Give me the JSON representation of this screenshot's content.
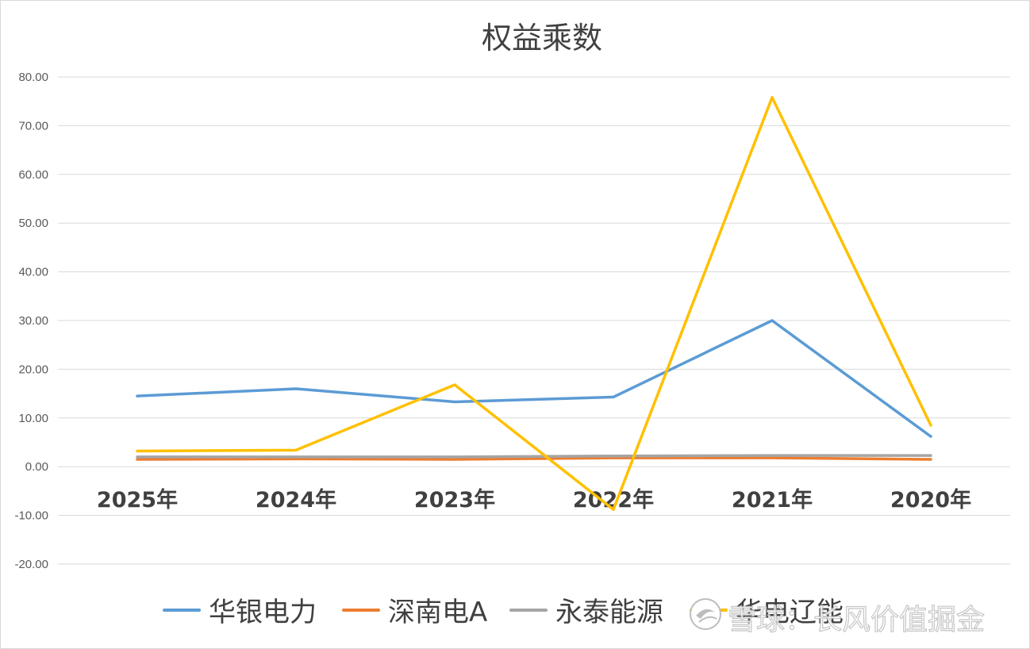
{
  "chart_data": {
    "type": "line",
    "title": "权益乘数",
    "xlabel": "",
    "ylabel": "",
    "categories": [
      "2025年",
      "2024年",
      "2023年",
      "2022年",
      "2021年",
      "2020年"
    ],
    "y_ticks": [
      "80.00",
      "70.00",
      "60.00",
      "50.00",
      "40.00",
      "30.00",
      "20.00",
      "10.00",
      "0.00",
      "-10.00",
      "-20.00"
    ],
    "ylim": [
      -20,
      80
    ],
    "grid": true,
    "legend_position": "bottom",
    "series": [
      {
        "name": "华银电力",
        "color": "#5b9bd5",
        "values": [
          14.5,
          16.0,
          13.3,
          14.3,
          30.0,
          6.2
        ]
      },
      {
        "name": "深南电A",
        "color": "#ed7d31",
        "values": [
          1.5,
          1.6,
          1.5,
          1.8,
          1.8,
          1.5
        ]
      },
      {
        "name": "永泰能源",
        "color": "#a5a5a5",
        "values": [
          2.0,
          2.0,
          2.0,
          2.2,
          2.3,
          2.3
        ]
      },
      {
        "name": "华电辽能",
        "color": "#ffc000",
        "values": [
          3.2,
          3.4,
          16.8,
          -8.8,
          75.8,
          8.5
        ]
      }
    ]
  },
  "watermark": {
    "text": "雪球：长风价值掘金",
    "icon": "snowball-logo-icon"
  }
}
